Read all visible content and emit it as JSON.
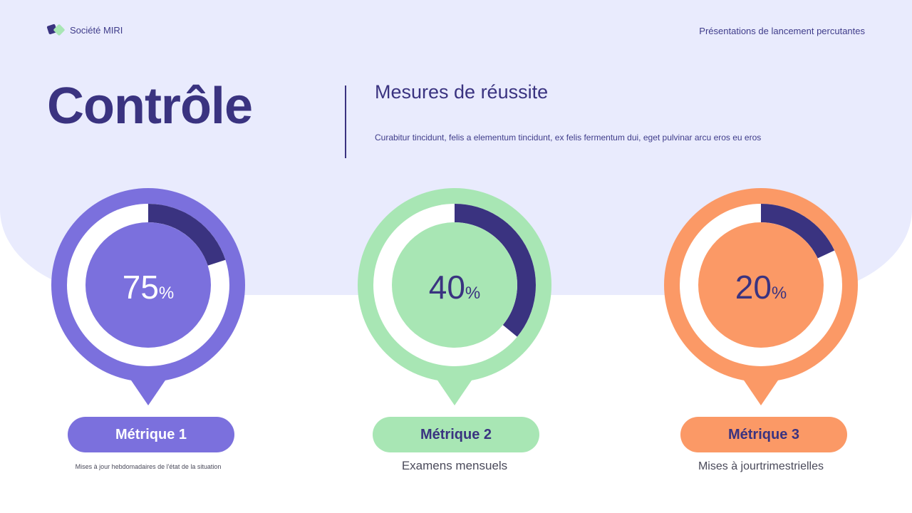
{
  "header": {
    "brand_name": "Société MIRI",
    "tagline": "Présentations de lancement percutantes"
  },
  "main": {
    "title": "Contrôle",
    "subtitle": "Mesures de réussite",
    "description": "Curabitur tincidunt, felis a elementum tincidunt, ex felis fermentum dui, eget pulvinar arcu eros eu eros"
  },
  "metrics": [
    {
      "value": "75",
      "unit": "%",
      "label": "Métrique 1",
      "caption": "Mises à jour hebdomadaires de l'état de la situation",
      "colors": {
        "pin": "#7b70dd",
        "label_bg": "#7b70dd",
        "text": "#ffffff",
        "arc": "#3a3380"
      }
    },
    {
      "value": "40",
      "unit": "%",
      "label": "Métrique 2",
      "caption": "Examens mensuels",
      "colors": {
        "pin": "#a8e6b4",
        "label_bg": "#a8e6b4",
        "text": "#3a3380",
        "arc": "#3a3380"
      }
    },
    {
      "value": "20",
      "unit": "%",
      "label": "Métrique 3",
      "caption": "Mises à jourtrimestrielles",
      "colors": {
        "pin": "#fb9966",
        "label_bg": "#fb9966",
        "text": "#3a3380",
        "arc": "#3a3380"
      }
    }
  ]
}
